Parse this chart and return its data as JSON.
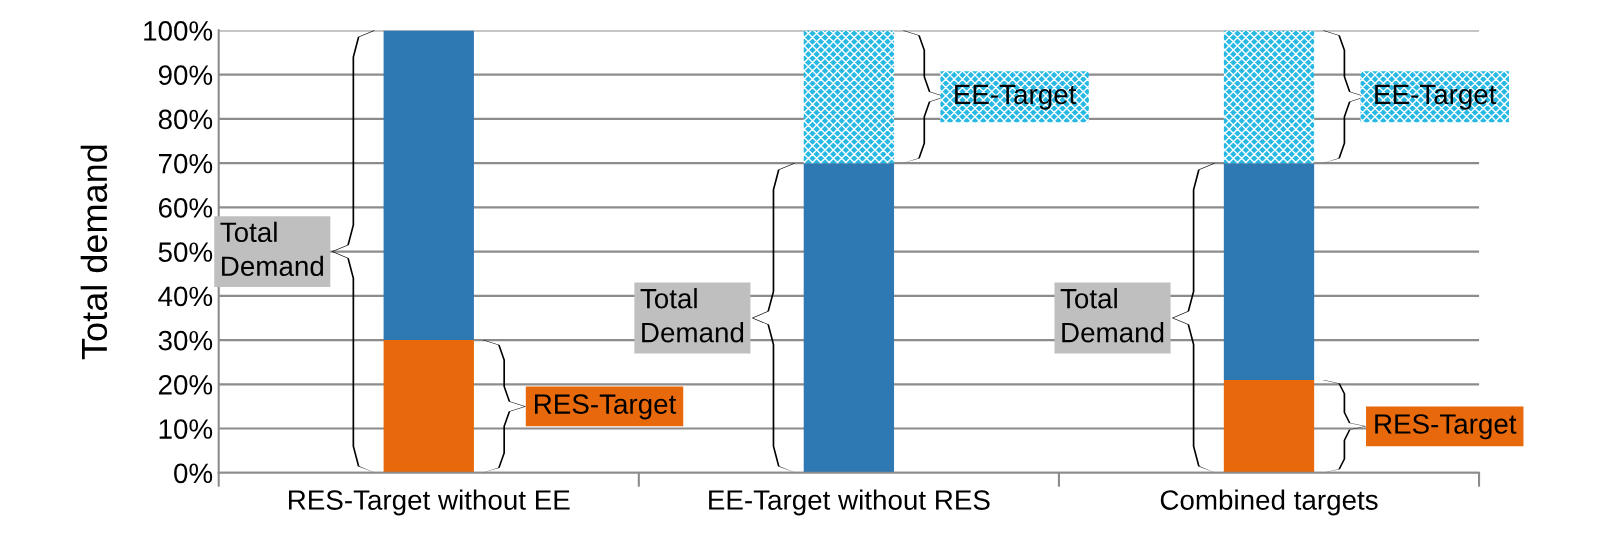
{
  "chart_data": {
    "type": "bar",
    "stacked": true,
    "ylabel": "Total demand",
    "categories": [
      "RES-Target without EE",
      "EE-Target without RES",
      "Combined targets"
    ],
    "series": [
      {
        "color": "#e8690b",
        "values": [
          30,
          0,
          21
        ]
      },
      {
        "color": "#2e78b4",
        "values": [
          70,
          70,
          49
        ]
      },
      {
        "color": "#27b9e3",
        "values": [
          0,
          30,
          30
        ]
      }
    ],
    "ylim": [
      0,
      100
    ],
    "yticks": [
      {
        "value": 0,
        "label": "0%"
      },
      {
        "value": 10,
        "label": "10%"
      },
      {
        "value": 20,
        "label": "20%"
      },
      {
        "value": 30,
        "label": "30%"
      },
      {
        "value": 40,
        "label": "40%"
      },
      {
        "value": 50,
        "label": "50%"
      },
      {
        "value": 60,
        "label": "60%"
      },
      {
        "value": 70,
        "label": "70%"
      },
      {
        "value": 80,
        "label": "80%"
      },
      {
        "value": 90,
        "label": "90%"
      },
      {
        "value": 100,
        "label": "100%"
      }
    ],
    "grid": "y",
    "legend": false,
    "annotations": [
      "Total\nDemand",
      "RES-Target",
      "Total\nDemand",
      "EE-Target",
      "Total\nDemand",
      "EE-Target",
      "RES-Target"
    ]
  }
}
